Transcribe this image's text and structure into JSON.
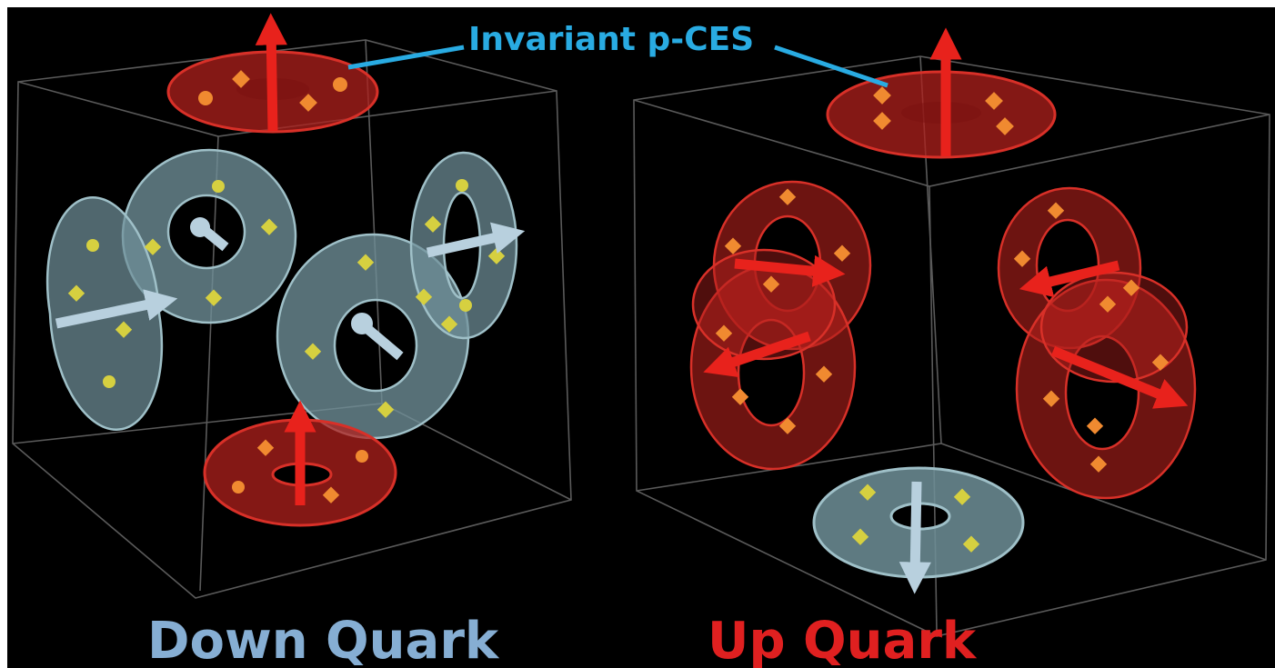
{
  "callout": {
    "text": "Invariant p-CES",
    "color": "#29abe2"
  },
  "panels": [
    {
      "id": "down",
      "title": "Down Quark",
      "title_color": "#86aed3",
      "glyphs": [
        {
          "kind": "ring",
          "color": "red",
          "spin": "up"
        },
        {
          "kind": "ring",
          "color": "red",
          "spin": "up"
        },
        {
          "kind": "torus",
          "color": "blue",
          "spin": "left"
        },
        {
          "kind": "torus",
          "color": "blue",
          "spin": "in"
        },
        {
          "kind": "torus",
          "color": "blue",
          "spin": "in"
        },
        {
          "kind": "torus",
          "color": "blue",
          "spin": "right"
        }
      ]
    },
    {
      "id": "up",
      "title": "Up Quark",
      "title_color": "#e02020",
      "glyphs": [
        {
          "kind": "ring",
          "color": "red",
          "spin": "up"
        },
        {
          "kind": "ring",
          "color": "blue",
          "spin": "down"
        },
        {
          "kind": "torus",
          "color": "red",
          "spin": "right"
        },
        {
          "kind": "torus",
          "color": "red",
          "spin": "left"
        },
        {
          "kind": "torus",
          "color": "red",
          "spin": "left"
        },
        {
          "kind": "torus",
          "color": "red",
          "spin": "right"
        }
      ]
    }
  ],
  "colors": {
    "background": "#000000",
    "page": "#ffffff",
    "cube_edge": "#5a5a5a",
    "red_ring_fill": "#b0201c",
    "red_ring_edge": "#d83028",
    "red_arrow": "#e8221c",
    "blue_ring_fill": "#6f8f98",
    "blue_ring_edge": "#9fc0c8",
    "blue_arrow": "#b8d0de",
    "yellow_marker": "#d6d040",
    "orange_marker": "#f08a30"
  },
  "icons": [
    "cube-wireframe",
    "torus-ring",
    "spin-arrow",
    "diamond-marker"
  ]
}
